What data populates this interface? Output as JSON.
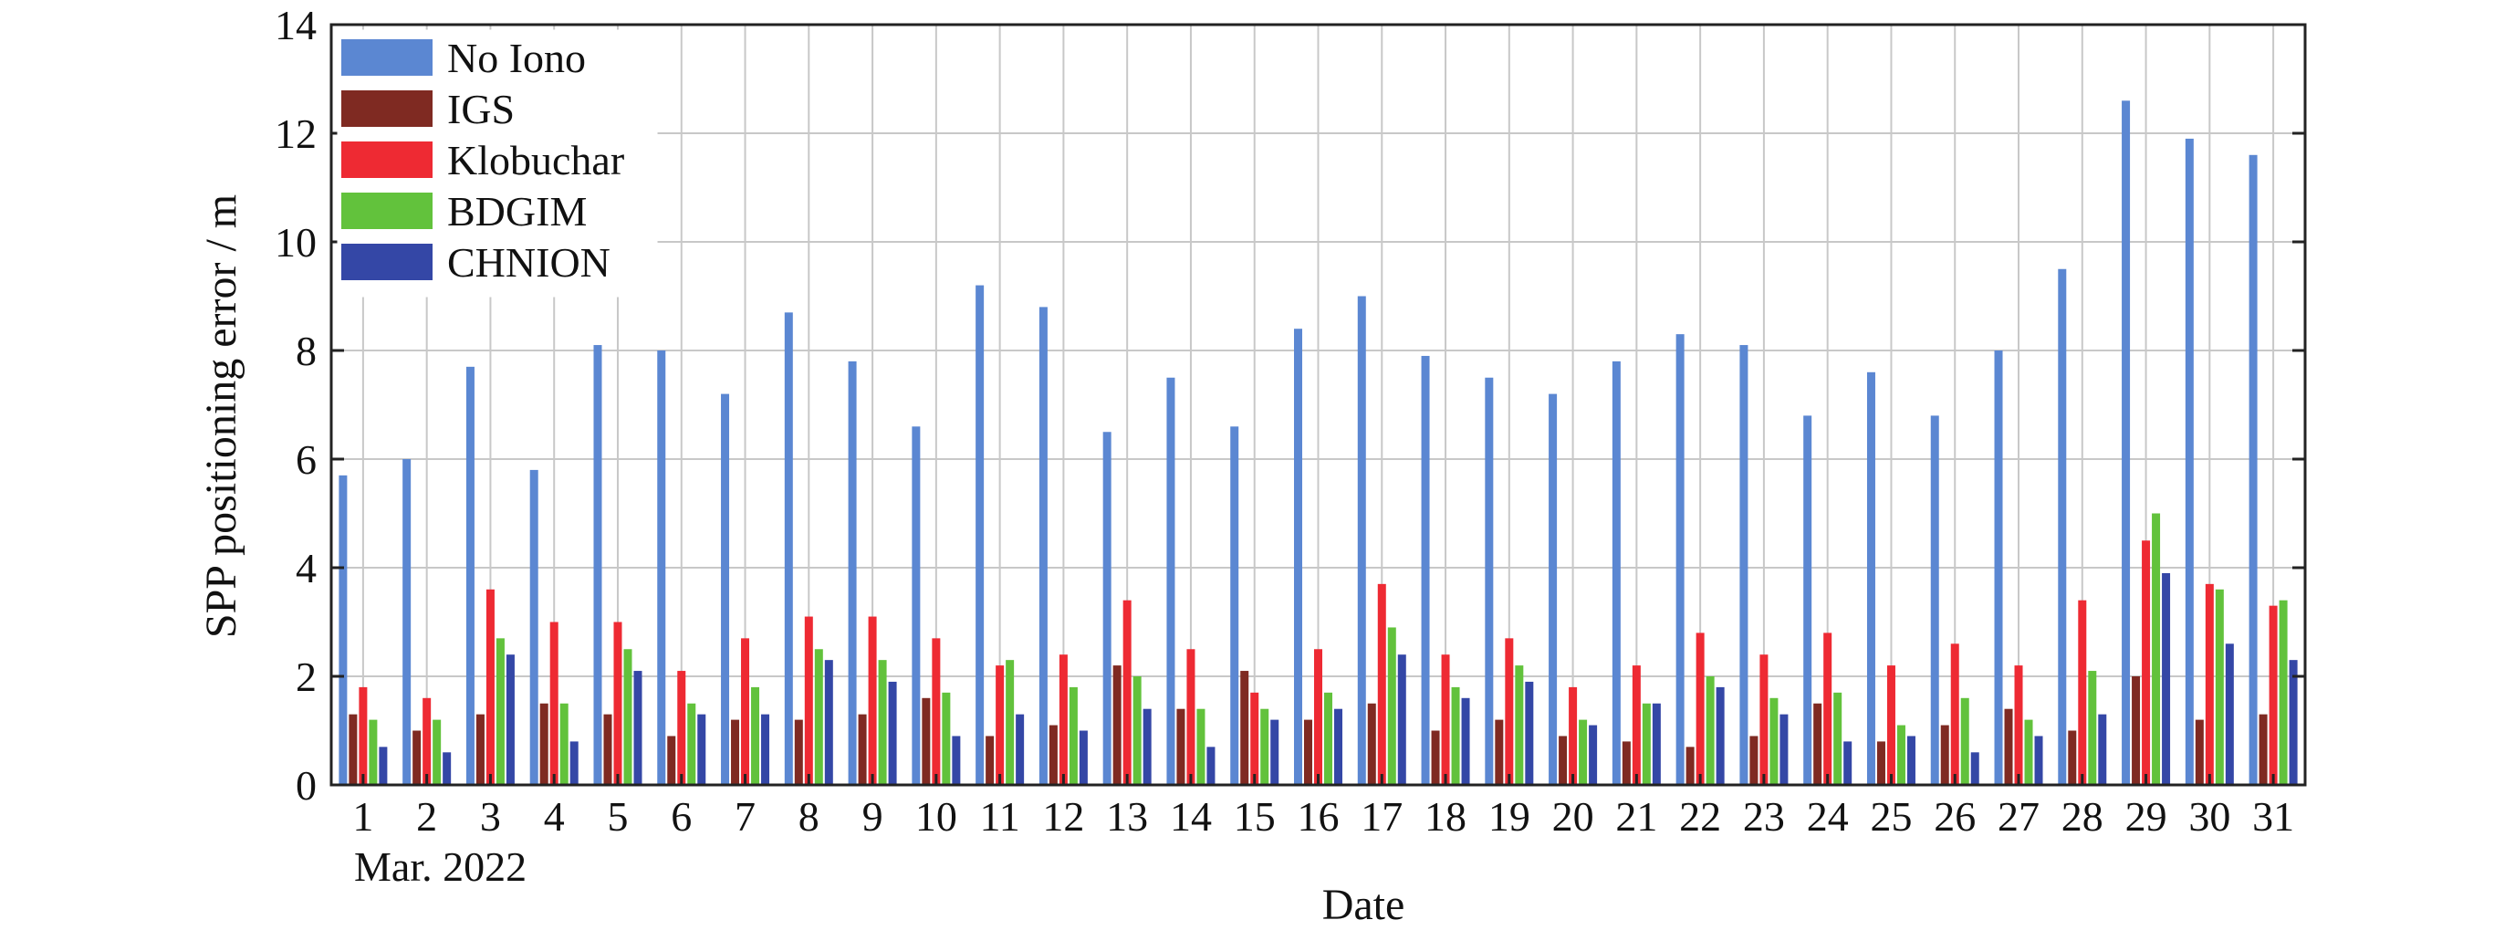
{
  "chart_data": {
    "type": "bar",
    "title": "",
    "xlabel": "Date",
    "ylabel": "SPP positioning error / m",
    "x_sublabel": "Mar. 2022",
    "ylim": [
      0,
      14
    ],
    "yticks": [
      0,
      2,
      4,
      6,
      8,
      10,
      12,
      14
    ],
    "grid": true,
    "legend_position": "top-left",
    "categories": [
      "1",
      "2",
      "3",
      "4",
      "5",
      "6",
      "7",
      "8",
      "9",
      "10",
      "11",
      "12",
      "13",
      "14",
      "15",
      "16",
      "17",
      "18",
      "19",
      "20",
      "21",
      "22",
      "23",
      "24",
      "25",
      "26",
      "27",
      "28",
      "29",
      "30",
      "31"
    ],
    "series": [
      {
        "name": "No Iono",
        "color": "#5b87d2",
        "values": [
          5.7,
          6.0,
          7.7,
          5.8,
          8.1,
          8.0,
          7.2,
          8.7,
          7.8,
          6.6,
          9.2,
          8.8,
          6.5,
          7.5,
          6.6,
          8.4,
          9.0,
          7.9,
          7.5,
          7.2,
          7.8,
          8.3,
          8.1,
          6.8,
          7.6,
          6.8,
          8.0,
          9.5,
          12.6,
          11.9,
          11.6
        ]
      },
      {
        "name": "IGS",
        "color": "#7f2a22",
        "values": [
          1.3,
          1.0,
          1.3,
          1.5,
          1.3,
          0.9,
          1.2,
          1.2,
          1.3,
          1.6,
          0.9,
          1.1,
          2.2,
          1.4,
          2.1,
          1.2,
          1.5,
          1.0,
          1.2,
          0.9,
          0.8,
          0.7,
          0.9,
          1.5,
          0.8,
          1.1,
          1.4,
          1.0,
          2.0,
          1.2,
          1.3
        ]
      },
      {
        "name": "Klobuchar",
        "color": "#ee2a33",
        "values": [
          1.8,
          1.6,
          3.6,
          3.0,
          3.0,
          2.1,
          2.7,
          3.1,
          3.1,
          2.7,
          2.2,
          2.4,
          3.4,
          2.5,
          1.7,
          2.5,
          3.7,
          2.4,
          2.7,
          1.8,
          2.2,
          2.8,
          2.4,
          2.8,
          2.2,
          2.6,
          2.2,
          3.4,
          4.5,
          3.7,
          3.3
        ]
      },
      {
        "name": "BDGIM",
        "color": "#62c23c",
        "values": [
          1.2,
          1.2,
          2.7,
          1.5,
          2.5,
          1.5,
          1.8,
          2.5,
          2.3,
          1.7,
          2.3,
          1.8,
          2.0,
          1.4,
          1.4,
          1.7,
          2.9,
          1.8,
          2.2,
          1.2,
          1.5,
          2.0,
          1.6,
          1.7,
          1.1,
          1.6,
          1.2,
          2.1,
          5.0,
          3.6,
          3.4
        ]
      },
      {
        "name": "CHNION",
        "color": "#3447a6",
        "values": [
          0.7,
          0.6,
          2.4,
          0.8,
          2.1,
          1.3,
          1.3,
          2.3,
          1.9,
          0.9,
          1.3,
          1.0,
          1.4,
          0.7,
          1.2,
          1.4,
          2.4,
          1.6,
          1.9,
          1.1,
          1.5,
          1.8,
          1.3,
          0.8,
          0.9,
          0.6,
          0.9,
          1.3,
          3.9,
          2.6,
          2.3
        ]
      }
    ]
  }
}
